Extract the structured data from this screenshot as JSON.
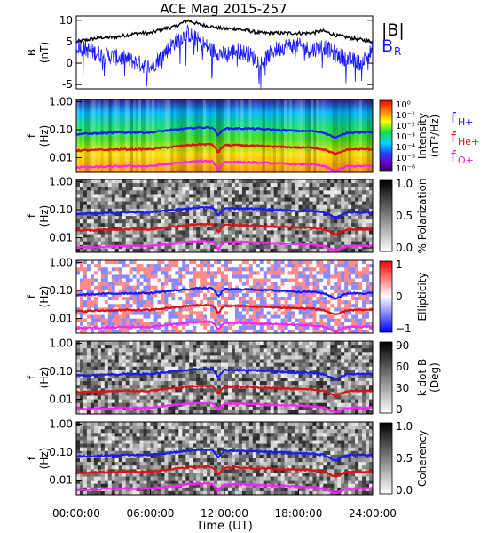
{
  "title": "ACE Mag 2015-257",
  "xaxis": {
    "label": "Time (UT)",
    "ticks": [
      "00:00:00",
      "06:00:00",
      "12:00:00",
      "18:00:00",
      "24:00:00"
    ],
    "range_hours": [
      0,
      24
    ]
  },
  "legend_top": {
    "b_label": "|B|",
    "br_label": "B",
    "br_sub": "R",
    "b_color": "#000000",
    "br_color": "#1a1aff"
  },
  "legend_freq": [
    {
      "main": "f",
      "sub": "H+",
      "color": "#1a1aff"
    },
    {
      "main": "f",
      "sub": "He+",
      "color": "#e01010"
    },
    {
      "main": "f",
      "sub": "O+",
      "color": "#e020e0"
    }
  ],
  "colors": {
    "fH": "#1a1aff",
    "fHe": "#e01010",
    "fO": "#ff22ff"
  },
  "freq_axis": {
    "label_main": "f",
    "label_unit": "(Hz)",
    "ticks": [
      "1.00",
      "0.10",
      "0.01"
    ],
    "range_hz": [
      0.003,
      1.2
    ],
    "scale": "log"
  },
  "panels": [
    {
      "id": "intensity",
      "colorbar_label": "Intensity",
      "colorbar_unit": "(nT²/Hz)",
      "colorbar_ticks": [
        "10⁰",
        "10⁻¹",
        "10⁻²",
        "10⁻³",
        "10⁻⁴",
        "10⁻⁵",
        "10⁻⁶"
      ]
    },
    {
      "id": "polarization",
      "colorbar_label": "% Polarization",
      "colorbar_unit": "",
      "colorbar_ticks": [
        "1.0",
        "0.5",
        "0.0"
      ]
    },
    {
      "id": "ellipticity",
      "colorbar_label": "Ellipticity",
      "colorbar_unit": "",
      "colorbar_ticks": [
        "1",
        "0",
        "−1"
      ]
    },
    {
      "id": "kdotb",
      "colorbar_label": "k dot B",
      "colorbar_unit": "(Deg)",
      "colorbar_ticks": [
        "90",
        "60",
        "30",
        "0"
      ]
    },
    {
      "id": "coherency",
      "colorbar_label": "Coherency",
      "colorbar_unit": "",
      "colorbar_ticks": [
        "1.0",
        "0.5",
        "0.0"
      ]
    }
  ],
  "chart_data": {
    "type": "line",
    "title": "ACE Mag 2015-257",
    "xlabel": "Time (UT)",
    "x_hours": [
      0,
      1,
      2,
      3,
      4,
      5,
      6,
      7,
      8,
      9,
      10,
      11,
      12,
      13,
      14,
      15,
      16,
      17,
      18,
      19,
      20,
      21,
      22,
      23,
      24
    ],
    "bfield": {
      "ylabel": "B (nT)",
      "ylim": [
        -6,
        11
      ],
      "yticks": [
        10,
        5,
        0,
        -5
      ],
      "series": [
        {
          "name": "|B|",
          "values": [
            5,
            5.5,
            6,
            6,
            6.5,
            7,
            7,
            8,
            8.5,
            10,
            9,
            8.5,
            8,
            8,
            7.5,
            7,
            7,
            7,
            7,
            7,
            7.5,
            6.5,
            6,
            5.5,
            5
          ]
        },
        {
          "name": "B_R",
          "values": [
            4,
            3,
            2,
            1.5,
            1,
            0,
            -1,
            2,
            5,
            7,
            5,
            3,
            2,
            3,
            2,
            0,
            3,
            4,
            4,
            3,
            4,
            2,
            1,
            0,
            3
          ]
        }
      ]
    },
    "gyrofrequency_hz": {
      "x_hours": [
        0,
        2,
        4,
        6,
        8,
        9,
        10,
        11,
        11.5,
        12,
        13,
        14,
        16,
        18,
        19,
        20,
        21,
        22,
        23,
        24
      ],
      "series": [
        {
          "name": "f_H+",
          "values": [
            0.07,
            0.075,
            0.08,
            0.08,
            0.1,
            0.11,
            0.12,
            0.12,
            0.06,
            0.11,
            0.11,
            0.11,
            0.1,
            0.09,
            0.09,
            0.08,
            0.05,
            0.08,
            0.08,
            0.08
          ]
        },
        {
          "name": "f_He+",
          "values": [
            0.018,
            0.019,
            0.02,
            0.02,
            0.025,
            0.028,
            0.03,
            0.03,
            0.015,
            0.028,
            0.028,
            0.027,
            0.025,
            0.023,
            0.023,
            0.02,
            0.013,
            0.02,
            0.02,
            0.02
          ]
        },
        {
          "name": "f_O+",
          "values": [
            0.0045,
            0.0047,
            0.005,
            0.005,
            0.0063,
            0.007,
            0.0075,
            0.0075,
            0.0038,
            0.007,
            0.007,
            0.0068,
            0.0063,
            0.0058,
            0.0058,
            0.005,
            0.0033,
            0.005,
            0.005,
            0.005
          ]
        }
      ]
    }
  }
}
